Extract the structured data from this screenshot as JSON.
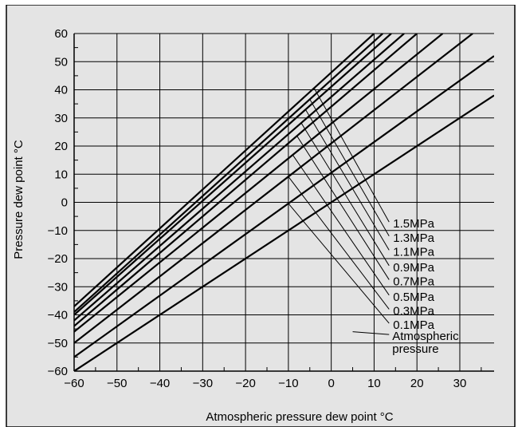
{
  "chart_data": {
    "type": "line",
    "title": "",
    "xlabel": "Atmospheric pressure dew point  °C",
    "ylabel": "Pressure dew point  °C",
    "xlim": [
      -60,
      38
    ],
    "ylim": [
      -60,
      60
    ],
    "grid": true,
    "x_ticks": [
      "−60",
      "−50",
      "−40",
      "−30",
      "−20",
      "−10",
      "0",
      "10",
      "20",
      "30"
    ],
    "y_ticks": [
      "60",
      "50",
      "40",
      "30",
      "20",
      "10",
      "0",
      "−10",
      "−20",
      "−30",
      "−40",
      "−50",
      "−60"
    ],
    "series": [
      {
        "name": "Atmospheric pressure",
        "x": [
          -60,
          38
        ],
        "y": [
          -60,
          38
        ],
        "label_lines": [
          "Atmospheric",
          "pressure"
        ]
      },
      {
        "name": "0.1MPa",
        "x": [
          -60,
          38
        ],
        "y": [
          -55,
          52
        ]
      },
      {
        "name": "0.3MPa",
        "x": [
          -60,
          33
        ],
        "y": [
          -50,
          60
        ]
      },
      {
        "name": "0.5MPa",
        "x": [
          -60,
          26
        ],
        "y": [
          -46,
          60
        ]
      },
      {
        "name": "0.7MPa",
        "x": [
          -60,
          20
        ],
        "y": [
          -44,
          60
        ]
      },
      {
        "name": "0.9MPa",
        "x": [
          -60,
          17
        ],
        "y": [
          -42,
          60
        ]
      },
      {
        "name": "1.1MPa",
        "x": [
          -60,
          14
        ],
        "y": [
          -40,
          60
        ]
      },
      {
        "name": "1.3MPa",
        "x": [
          -60,
          12
        ],
        "y": [
          -39,
          60
        ]
      },
      {
        "name": "1.5MPa",
        "x": [
          -60,
          10
        ],
        "y": [
          -37,
          60
        ]
      }
    ],
    "colors": {
      "background": "#e4e4e4",
      "line": "#000000",
      "grid": "#000000"
    }
  }
}
